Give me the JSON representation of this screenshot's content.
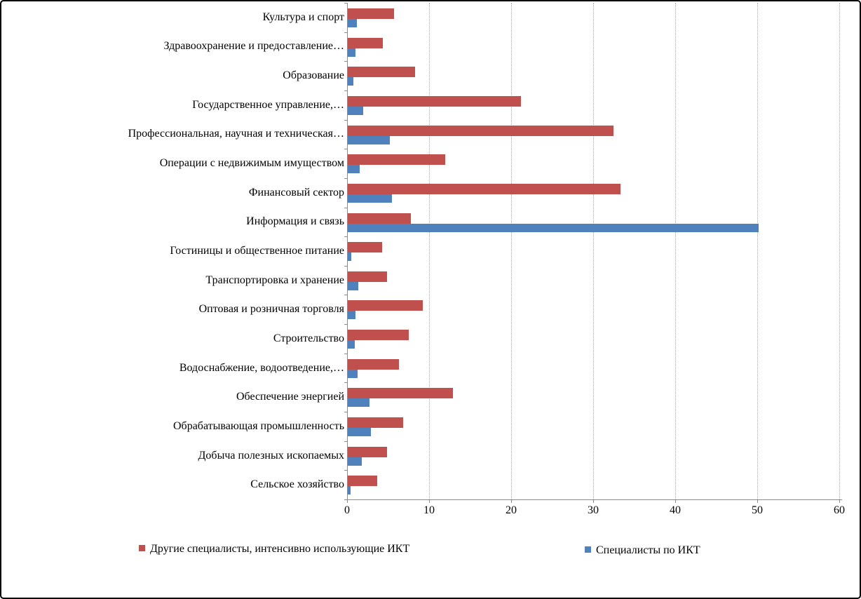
{
  "chart_data": {
    "type": "bar",
    "orientation": "horizontal",
    "title": "",
    "xlabel": "",
    "ylabel": "",
    "xlim": [
      0,
      60
    ],
    "x_ticks": [
      0,
      10,
      20,
      30,
      40,
      50,
      60
    ],
    "grid": "vertical-dotted",
    "legend_position": "bottom",
    "background_color": "#ffffff",
    "gridline_color": "#a7a7a7",
    "axis_color": "#8c8c8c",
    "categories": [
      "Культура и спорт",
      "Здравоохранение и предоставление…",
      "Образование",
      "Государственное управление,…",
      "Профессиональная, научная и техническая…",
      "Операции с недвижимым имуществом",
      "Финансовый сектор",
      "Информация и связь",
      "Гостиницы и общественное питание",
      "Транспортировка и хранение",
      "Оптовая и розничная торговля",
      "Строительство",
      "Водоснабжение, водоотведение,…",
      "Обеспечение энергией",
      "Обрабатывающая промышленность",
      "Добыча полезных ископаемых",
      "Сельское хозяйство"
    ],
    "series": [
      {
        "name": "Другие специалисты, интенсивно использующие ИКТ",
        "color": "#c0504d",
        "values": [
          5.7,
          4.4,
          8.3,
          21.2,
          32.5,
          12.0,
          33.3,
          7.8,
          4.3,
          4.9,
          9.2,
          7.5,
          6.3,
          12.9,
          6.8,
          4.9,
          3.7
        ]
      },
      {
        "name": "Специалисты по ИКТ",
        "color": "#4f81bd",
        "values": [
          1.2,
          1.0,
          0.8,
          2.0,
          5.2,
          1.5,
          5.5,
          50.2,
          0.5,
          1.4,
          1.0,
          0.9,
          1.3,
          2.7,
          2.9,
          1.8,
          0.4
        ]
      }
    ]
  }
}
